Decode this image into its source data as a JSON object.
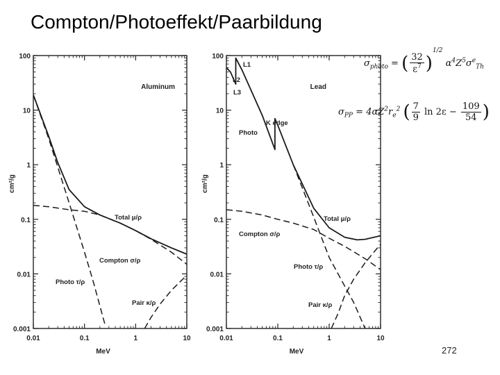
{
  "slide": {
    "title": "Compton/Photoeffekt/Paarbildung",
    "page_number": "272"
  },
  "formulas": {
    "photo": {
      "lhs": "σ",
      "lhs_sub": "photo",
      "eq": "=",
      "num": "32",
      "den": "ε",
      "den_exp": "7",
      "outer_exp": "1/2",
      "rhs": "α",
      "rhs_exp1": "4",
      "z": "Z",
      "z_exp": "5",
      "sig": "σ",
      "sig_sub": "Th",
      "sig_sup": "e"
    },
    "pp": {
      "lhs": "σ",
      "lhs_sub": "PP",
      "eq": "=",
      "pre": "4αZ",
      "pre_exp": "2",
      "r": "r",
      "r_sub": "e",
      "r_exp": "2",
      "f1_num": "7",
      "f1_den": "9",
      "ln": "ln 2ε −",
      "f2_num": "109",
      "f2_den": "54"
    }
  },
  "chart_data": [
    {
      "type": "line",
      "title": "Aluminum",
      "xlabel": "MeV",
      "ylabel": "cm²/g",
      "xscale": "log",
      "yscale": "log",
      "xlim": [
        0.01,
        10
      ],
      "ylim": [
        0.001,
        100
      ],
      "x_ticks": [
        "0.01",
        "0.1",
        "1",
        "10"
      ],
      "y_ticks": [
        "0.001",
        "0.01",
        "0.1",
        "1",
        "10",
        "100"
      ],
      "grid": false,
      "series": [
        {
          "name": "Total μ/ρ",
          "style": "solid",
          "x": [
            0.01,
            0.02,
            0.03,
            0.05,
            0.1,
            0.2,
            0.5,
            1,
            2,
            5,
            10
          ],
          "y": [
            19,
            3.3,
            1.1,
            0.35,
            0.17,
            0.12,
            0.085,
            0.062,
            0.044,
            0.03,
            0.023
          ]
        },
        {
          "name": "Compton σ/ρ",
          "style": "dashed",
          "x": [
            0.01,
            0.02,
            0.05,
            0.1,
            0.2,
            0.5,
            1,
            2,
            5,
            10
          ],
          "y": [
            0.18,
            0.17,
            0.15,
            0.14,
            0.12,
            0.085,
            0.062,
            0.043,
            0.025,
            0.015
          ]
        },
        {
          "name": "Photo τ/ρ",
          "style": "dashed",
          "x": [
            0.01,
            0.02,
            0.05,
            0.1,
            0.15,
            0.25
          ],
          "y": [
            19,
            3,
            0.2,
            0.025,
            0.007,
            0.0012
          ]
        },
        {
          "name": "Pair κ/ρ",
          "style": "dashed",
          "x": [
            1.5,
            2,
            3,
            5,
            10
          ],
          "y": [
            0.001,
            0.0016,
            0.0028,
            0.005,
            0.0095
          ]
        }
      ]
    },
    {
      "type": "line",
      "title": "Lead",
      "xlabel": "MeV",
      "ylabel": "cm²/g",
      "xscale": "log",
      "yscale": "log",
      "xlim": [
        0.01,
        10
      ],
      "ylim": [
        0.001,
        100
      ],
      "x_ticks": [
        "0.01",
        "0.1",
        "1",
        "10"
      ],
      "y_ticks": [
        "0.001",
        "0.01",
        "0.1",
        "1",
        "10",
        "100"
      ],
      "grid": false,
      "annotations": [
        "L1",
        "L2",
        "L3",
        "K edge",
        "Photo"
      ],
      "series": [
        {
          "name": "Total μ/ρ",
          "style": "solid",
          "x": [
            0.01,
            0.012,
            0.0152,
            0.0152,
            0.02,
            0.05,
            0.088,
            0.088,
            0.1,
            0.2,
            0.5,
            1,
            2,
            3.5,
            5,
            10
          ],
          "y": [
            60,
            50,
            30,
            90,
            55,
            8,
            1.9,
            7,
            5.3,
            1,
            0.16,
            0.07,
            0.047,
            0.042,
            0.043,
            0.05
          ]
        },
        {
          "name": "Compton σ/ρ",
          "style": "dashed",
          "x": [
            0.01,
            0.02,
            0.05,
            0.1,
            0.2,
            0.5,
            1,
            2,
            5,
            10
          ],
          "y": [
            0.15,
            0.14,
            0.12,
            0.1,
            0.085,
            0.065,
            0.045,
            0.032,
            0.019,
            0.012
          ]
        },
        {
          "name": "Photo τ/ρ",
          "style": "dashed",
          "x": [
            0.2,
            0.5,
            1,
            2,
            3,
            5
          ],
          "y": [
            1,
            0.11,
            0.02,
            0.006,
            0.003,
            0.001
          ]
        },
        {
          "name": "Pair κ/ρ",
          "style": "dashed",
          "x": [
            1.1,
            1.5,
            2,
            3,
            5,
            10
          ],
          "y": [
            0.001,
            0.0019,
            0.004,
            0.008,
            0.016,
            0.035
          ]
        }
      ]
    }
  ]
}
